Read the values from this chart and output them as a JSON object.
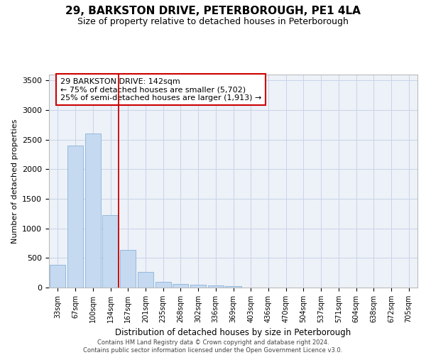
{
  "title": "29, BARKSTON DRIVE, PETERBOROUGH, PE1 4LA",
  "subtitle": "Size of property relative to detached houses in Peterborough",
  "xlabel": "Distribution of detached houses by size in Peterborough",
  "ylabel": "Number of detached properties",
  "categories": [
    "33sqm",
    "67sqm",
    "100sqm",
    "134sqm",
    "167sqm",
    "201sqm",
    "235sqm",
    "268sqm",
    "302sqm",
    "336sqm",
    "369sqm",
    "403sqm",
    "436sqm",
    "470sqm",
    "504sqm",
    "537sqm",
    "571sqm",
    "604sqm",
    "638sqm",
    "672sqm",
    "705sqm"
  ],
  "values": [
    390,
    2400,
    2600,
    1230,
    640,
    260,
    100,
    55,
    45,
    35,
    30,
    0,
    0,
    0,
    0,
    0,
    0,
    0,
    0,
    0,
    0
  ],
  "bar_color": "#c5d9f1",
  "bar_edgecolor": "#8ab4d8",
  "vline_color": "#cc0000",
  "annotation_text": "29 BARKSTON DRIVE: 142sqm\n← 75% of detached houses are smaller (5,702)\n25% of semi-detached houses are larger (1,913) →",
  "annotation_box_edgecolor": "#cc0000",
  "ylim": [
    0,
    3600
  ],
  "yticks": [
    0,
    500,
    1000,
    1500,
    2000,
    2500,
    3000,
    3500
  ],
  "grid_color": "#c8d4e8",
  "background_color": "#edf1f8",
  "title_fontsize": 11,
  "subtitle_fontsize": 9,
  "footer_line1": "Contains HM Land Registry data © Crown copyright and database right 2024.",
  "footer_line2": "Contains public sector information licensed under the Open Government Licence v3.0."
}
